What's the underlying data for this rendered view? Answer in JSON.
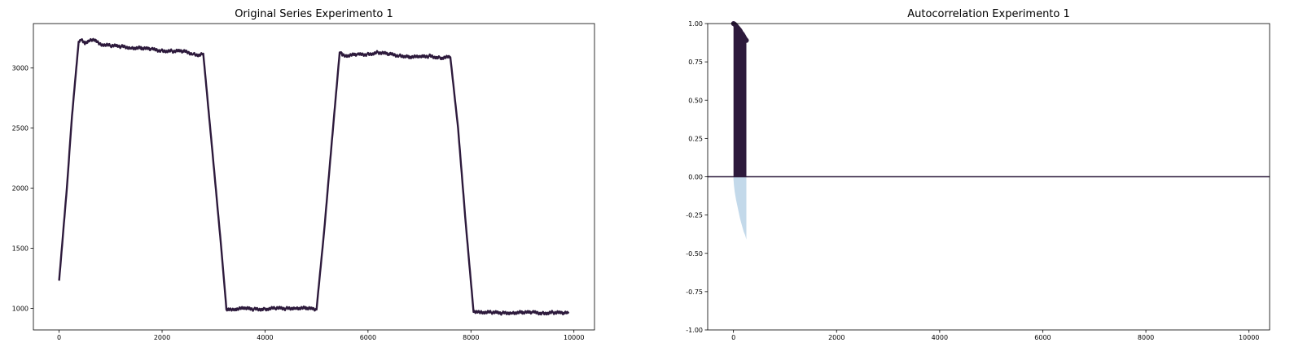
{
  "chart_data": [
    {
      "type": "line",
      "title": "Original Series Experimento 1",
      "xlabel": "",
      "ylabel": "",
      "xlim": [
        -500,
        10400
      ],
      "ylim": [
        820,
        3370
      ],
      "xticks": [
        0,
        2000,
        4000,
        6000,
        8000,
        10000
      ],
      "yticks": [
        1000,
        1500,
        2000,
        2500,
        3000
      ],
      "grid": false,
      "color": "#2d1a3c",
      "series": [
        {
          "x": [
            0,
            150,
            250,
            380,
            420,
            500,
            600,
            700,
            800,
            1000,
            1200,
            1400,
            1600,
            1800,
            2000,
            2200,
            2400,
            2600,
            2700,
            2800,
            3000,
            3150,
            3250,
            3300,
            3400,
            3600,
            3800,
            4000,
            4200,
            4400,
            4600,
            4800,
            5000,
            5150,
            5300,
            5450,
            5500,
            5600,
            5800,
            6000,
            6200,
            6400,
            6600,
            6800,
            7000,
            7200,
            7400,
            7600,
            7750,
            7900,
            8050,
            8100,
            8200,
            8400,
            8600,
            8800,
            9000,
            9200,
            9400,
            9600,
            9800,
            9900
          ],
          "y": [
            1230,
            2000,
            2600,
            3220,
            3235,
            3210,
            3235,
            3225,
            3200,
            3185,
            3180,
            3170,
            3165,
            3155,
            3145,
            3140,
            3140,
            3120,
            3110,
            3120,
            2200,
            1500,
            990,
            985,
            995,
            998,
            992,
            995,
            1000,
            998,
            1005,
            1000,
            990,
            1650,
            2400,
            3130,
            3110,
            3105,
            3110,
            3115,
            3130,
            3115,
            3105,
            3095,
            3090,
            3100,
            3085,
            3090,
            2500,
            1700,
            975,
            965,
            970,
            965,
            960,
            965,
            965,
            965,
            960,
            965,
            960,
            958
          ]
        }
      ]
    },
    {
      "type": "area",
      "title": "Autocorrelation Experimento 1",
      "xlabel": "",
      "ylabel": "",
      "xlim": [
        -500,
        10400
      ],
      "ylim": [
        -1.0,
        1.0
      ],
      "xticks": [
        0,
        2000,
        4000,
        6000,
        8000,
        10000
      ],
      "yticks": [
        -1.0,
        -0.75,
        -0.5,
        -0.25,
        0.0,
        0.25,
        0.5,
        0.75,
        1.0
      ],
      "grid": false,
      "color": "#2d1a3c",
      "confidence_color": "#c3d9ea",
      "lags_max": 250,
      "acf": {
        "lag": [
          0,
          25,
          50,
          75,
          100,
          125,
          150,
          175,
          200,
          225,
          250
        ],
        "value": [
          1.0,
          0.995,
          0.985,
          0.975,
          0.965,
          0.955,
          0.94,
          0.93,
          0.915,
          0.9,
          0.89
        ]
      },
      "confidence_band": {
        "lag": [
          0,
          10,
          25,
          50,
          75,
          100,
          125,
          150,
          175,
          200,
          225,
          250
        ],
        "lower": [
          -0.02,
          -0.06,
          -0.1,
          -0.15,
          -0.19,
          -0.23,
          -0.27,
          -0.3,
          -0.33,
          -0.36,
          -0.38,
          -0.41
        ]
      }
    }
  ]
}
